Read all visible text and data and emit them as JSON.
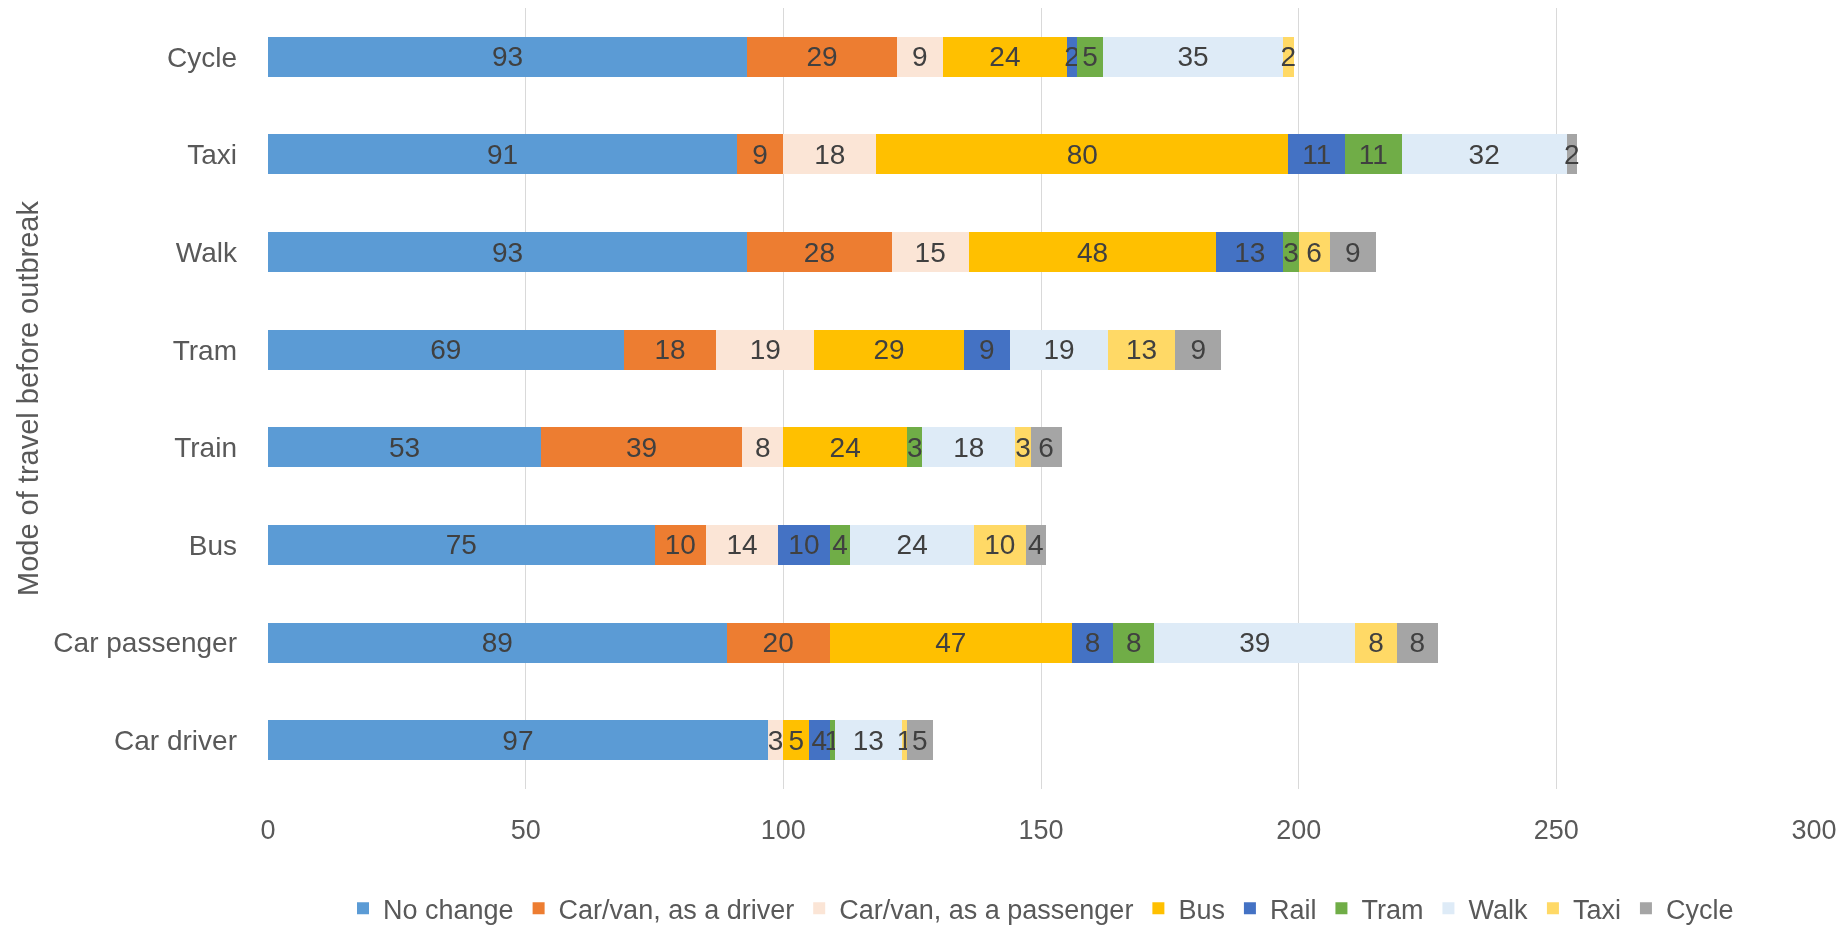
{
  "chart_data": {
    "type": "bar",
    "orientation": "horizontal",
    "stacked": true,
    "ylabel": "Mode of travel before outbreak",
    "categories": [
      "Cycle",
      "Taxi",
      "Walk",
      "Tram",
      "Train",
      "Bus",
      "Car passenger",
      "Car driver"
    ],
    "series": [
      {
        "name": "No change",
        "color": "#5b9bd5",
        "values": [
          93,
          91,
          93,
          69,
          53,
          75,
          89,
          97
        ]
      },
      {
        "name": "Car/van, as a driver",
        "color": "#ed7d31",
        "values": [
          29,
          9,
          28,
          18,
          39,
          10,
          20,
          null
        ]
      },
      {
        "name": "Car/van, as a passenger",
        "color": "#fbe5d6",
        "values": [
          9,
          18,
          15,
          19,
          8,
          14,
          null,
          3
        ]
      },
      {
        "name": "Bus",
        "color": "#ffc000",
        "values": [
          24,
          80,
          48,
          29,
          24,
          null,
          47,
          5
        ]
      },
      {
        "name": "Rail",
        "color": "#4472c4",
        "values": [
          2,
          11,
          13,
          9,
          null,
          10,
          8,
          4
        ]
      },
      {
        "name": "Tram",
        "color": "#70ad47",
        "values": [
          5,
          11,
          3,
          null,
          3,
          4,
          8,
          1
        ]
      },
      {
        "name": "Walk",
        "color": "#deebf7",
        "values": [
          35,
          32,
          null,
          19,
          18,
          24,
          39,
          13
        ]
      },
      {
        "name": "Taxi",
        "color": "#ffd966",
        "values": [
          2,
          null,
          6,
          13,
          3,
          10,
          8,
          1
        ]
      },
      {
        "name": "Cycle",
        "color": "#a5a5a5",
        "values": [
          null,
          2,
          9,
          9,
          6,
          4,
          8,
          5
        ]
      }
    ],
    "xlim": [
      0,
      300
    ],
    "xticks": [
      0,
      50,
      100,
      150,
      200,
      250,
      300
    ],
    "grid": "x",
    "legend": "bottom",
    "data_labels": true
  }
}
